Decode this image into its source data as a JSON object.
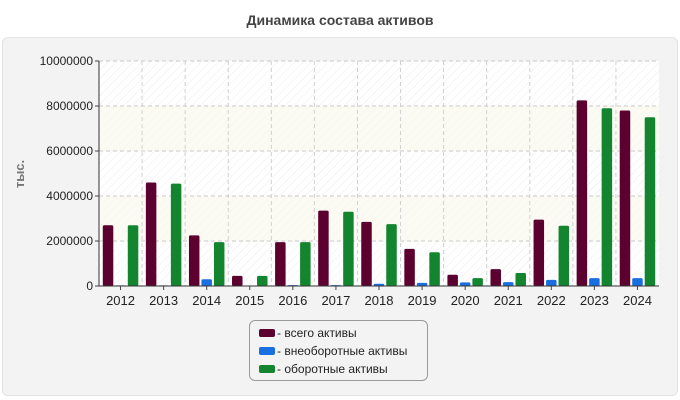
{
  "chart_data": {
    "type": "bar",
    "title": "Динамика состава активов",
    "xlabel": "",
    "ylabel": "тыс.",
    "ylim": [
      0,
      10000000
    ],
    "yticks": [
      0,
      2000000,
      4000000,
      6000000,
      8000000,
      10000000
    ],
    "ytick_labels": [
      "0",
      "2000000",
      "4000000",
      "6000000",
      "8000000",
      "10000000"
    ],
    "grid": true,
    "legend_position": "bottom-center",
    "categories": [
      "2012",
      "2013",
      "2014",
      "2015",
      "2016",
      "2017",
      "2018",
      "2019",
      "2020",
      "2021",
      "2022",
      "2023",
      "2024"
    ],
    "series": [
      {
        "name": "всего активы",
        "color": "#5c0030",
        "values": [
          2700000,
          4600000,
          2250000,
          450000,
          1950000,
          3350000,
          2850000,
          1650000,
          500000,
          750000,
          2950000,
          8250000,
          7800000
        ]
      },
      {
        "name": "внеоборотные активы",
        "color": "#1a6fe0",
        "values": [
          30000,
          30000,
          300000,
          20000,
          40000,
          40000,
          100000,
          140000,
          160000,
          170000,
          270000,
          350000,
          350000
        ]
      },
      {
        "name": "оборотные активы",
        "color": "#12852e",
        "values": [
          2700000,
          4550000,
          1950000,
          450000,
          1950000,
          3300000,
          2750000,
          1500000,
          350000,
          580000,
          2680000,
          7900000,
          7500000
        ]
      }
    ]
  }
}
